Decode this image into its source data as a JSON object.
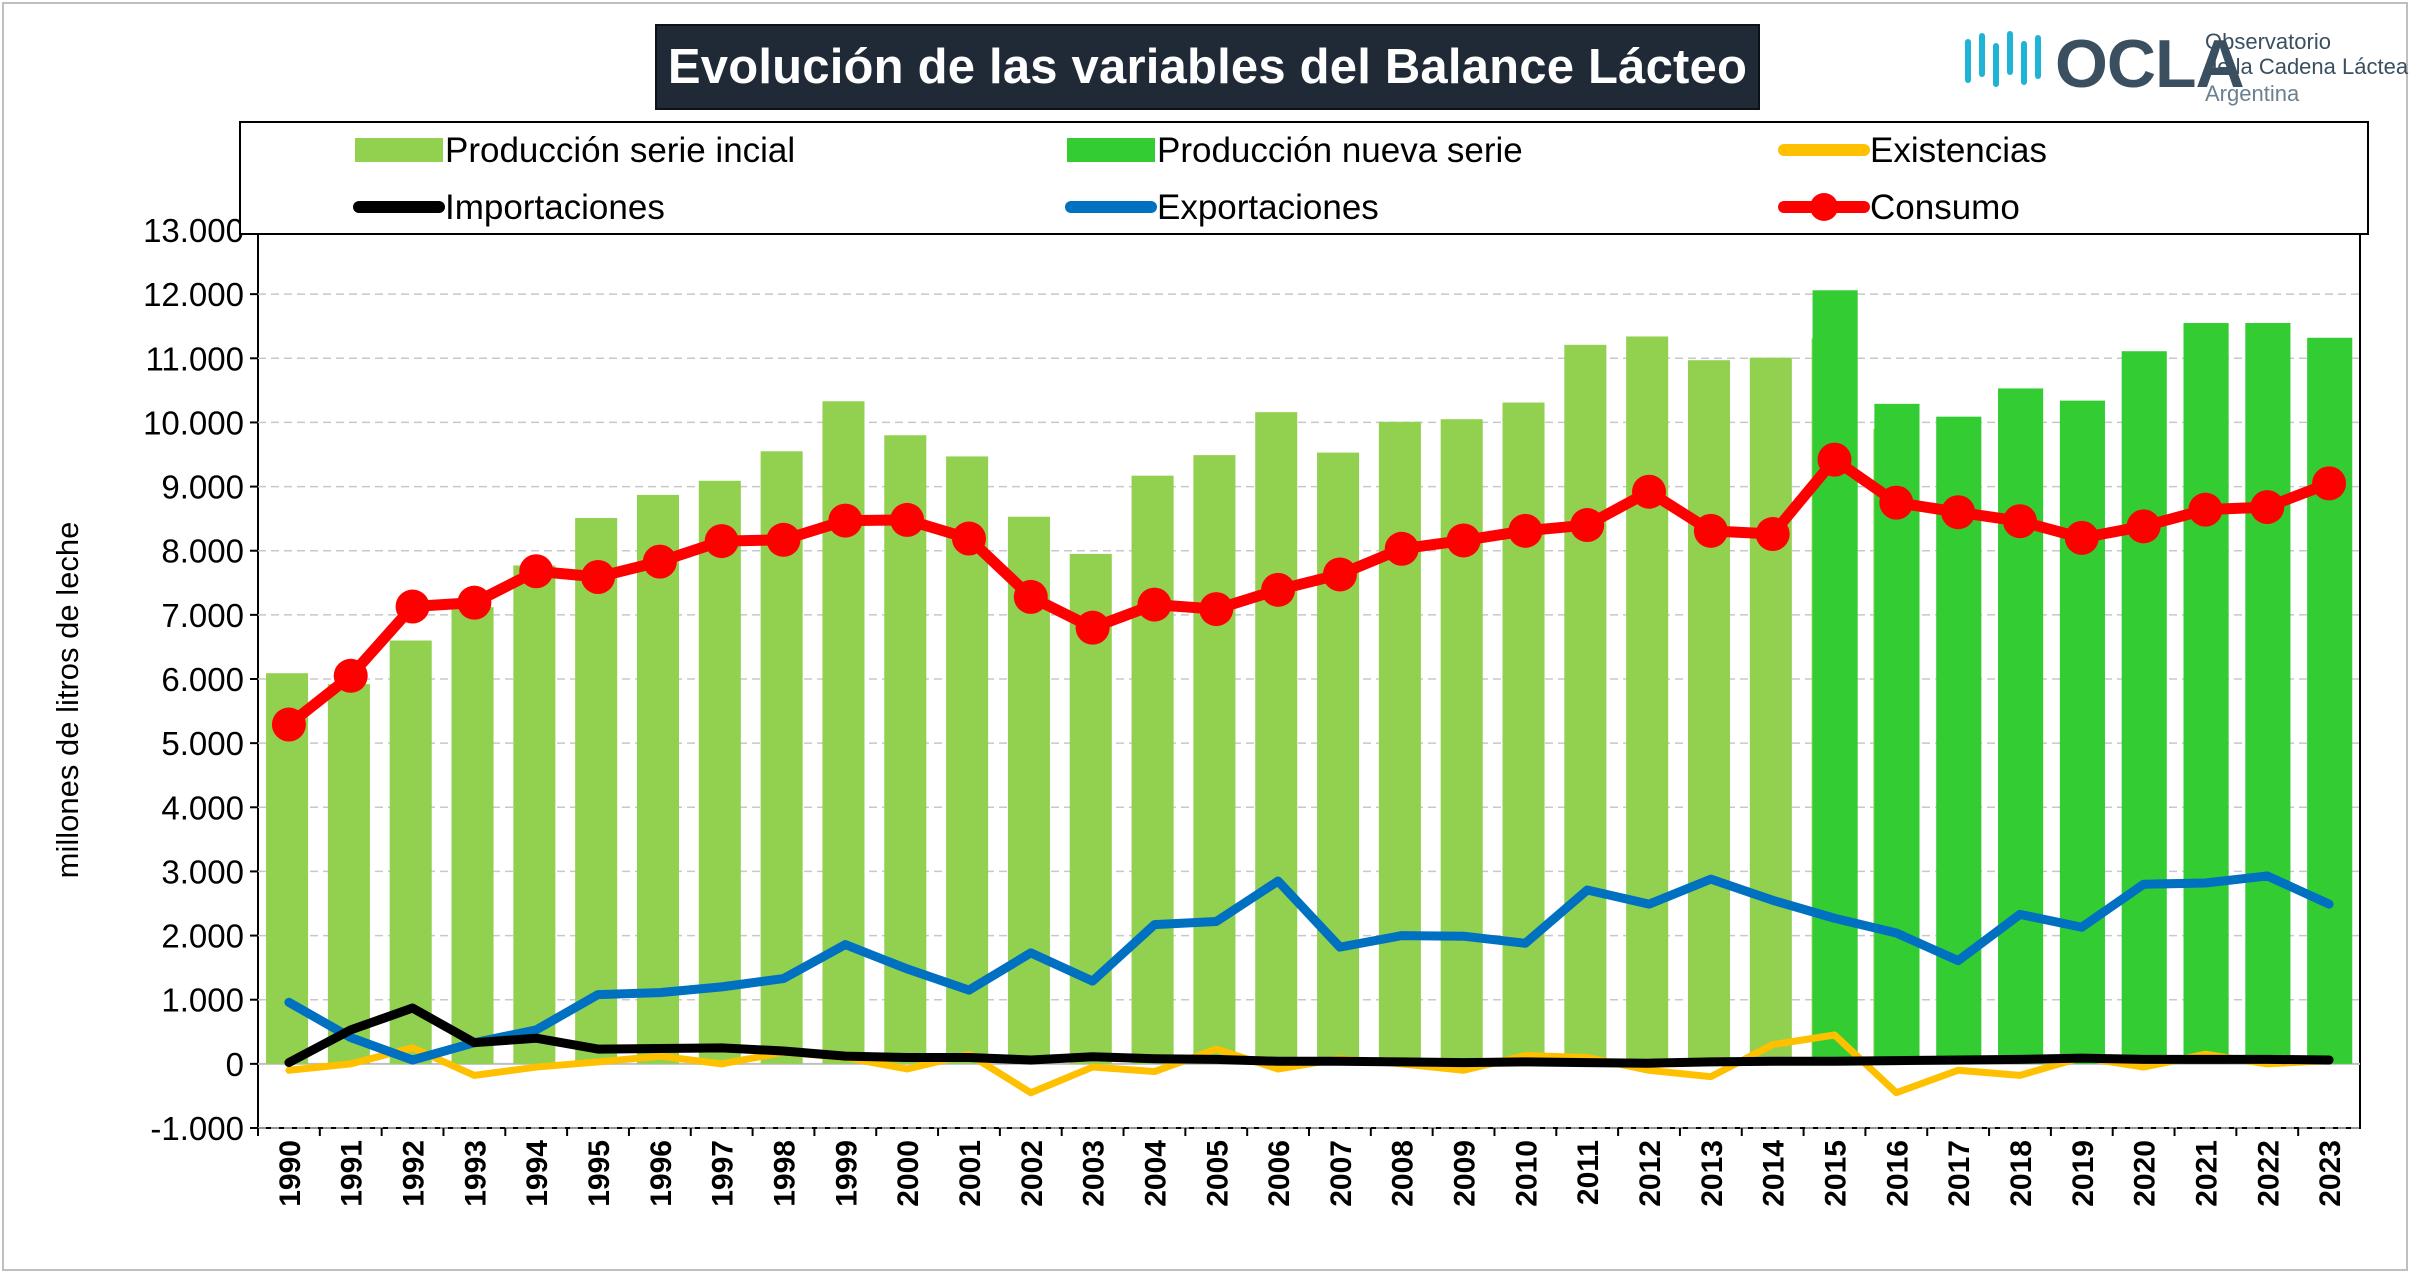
{
  "header": {
    "title": "Evolución de las variables del Balance Lácteo",
    "logo": {
      "brand": "OCLA",
      "line1": "Observatorio",
      "line2": "de la Cadena Láctea",
      "line3": "Argentina",
      "icon": "wave-bars-icon"
    }
  },
  "colors": {
    "produccion_inicial": "#92d050",
    "produccion_nueva": "#33cc33",
    "existencias": "#ffc000",
    "importaciones": "#000000",
    "exportaciones": "#0070c0",
    "consumo": "#ff0000"
  },
  "chart_data": {
    "type": "bar",
    "title": "Evolución de las variables del Balance Lácteo",
    "xlabel": "",
    "ylabel": "millones de litros de leche",
    "ylim": [
      -1000,
      13000
    ],
    "yticks": [
      "-1.000",
      "0",
      "1.000",
      "2.000",
      "3.000",
      "4.000",
      "5.000",
      "6.000",
      "7.000",
      "8.000",
      "9.000",
      "10.000",
      "11.000",
      "12.000",
      "13.000"
    ],
    "grid": true,
    "legend_position": "top",
    "categories": [
      "1990",
      "1991",
      "1992",
      "1993",
      "1994",
      "1995",
      "1996",
      "1997",
      "1998",
      "1999",
      "2000",
      "2001",
      "2002",
      "2003",
      "2004",
      "2005",
      "2006",
      "2007",
      "2008",
      "2009",
      "2010",
      "2011",
      "2012",
      "2013",
      "2014",
      "2015",
      "2016",
      "2017",
      "2018",
      "2019",
      "2020",
      "2021",
      "2022",
      "2023"
    ],
    "series": [
      {
        "name": "Producción serie incial",
        "kind": "bar",
        "color_key": "produccion_inicial",
        "values": [
          6090,
          5920,
          6600,
          7120,
          7770,
          8510,
          8870,
          9090,
          9550,
          10330,
          9800,
          9470,
          8530,
          7950,
          9170,
          9490,
          10160,
          9530,
          10010,
          10050,
          10310,
          11210,
          11340,
          10970,
          11010,
          11310,
          9900,
          null,
          null,
          null,
          null,
          null,
          null,
          null
        ]
      },
      {
        "name": "Producción nueva serie",
        "kind": "bar",
        "color_key": "produccion_nueva",
        "values": [
          null,
          null,
          null,
          null,
          null,
          null,
          null,
          null,
          null,
          null,
          null,
          null,
          null,
          null,
          null,
          null,
          null,
          null,
          null,
          null,
          null,
          null,
          null,
          null,
          null,
          12060,
          10290,
          10090,
          10530,
          10340,
          11110,
          11550,
          11550,
          11320
        ]
      },
      {
        "name": "Existencias",
        "kind": "line",
        "color_key": "existencias",
        "values": [
          -100,
          0,
          250,
          -180,
          -50,
          30,
          120,
          0,
          180,
          100,
          -80,
          150,
          -450,
          -50,
          -120,
          230,
          -80,
          80,
          0,
          -100,
          130,
          100,
          -100,
          -200,
          300,
          450,
          -450,
          -100,
          -180,
          100,
          -50,
          150,
          0,
          50
        ]
      },
      {
        "name": "Importaciones",
        "kind": "line",
        "color_key": "importaciones",
        "values": [
          20,
          530,
          870,
          330,
          400,
          230,
          240,
          250,
          200,
          120,
          100,
          100,
          60,
          110,
          80,
          70,
          40,
          40,
          30,
          20,
          30,
          20,
          10,
          30,
          40,
          40,
          50,
          60,
          70,
          90,
          70,
          70,
          70,
          60
        ]
      },
      {
        "name": "Exportaciones",
        "kind": "line",
        "color_key": "exportaciones",
        "values": [
          960,
          410,
          60,
          330,
          530,
          1080,
          1110,
          1200,
          1330,
          1860,
          1480,
          1150,
          1730,
          1290,
          2170,
          2220,
          2850,
          1820,
          2000,
          1990,
          1880,
          2710,
          2490,
          2880,
          2550,
          2270,
          2040,
          1610,
          2330,
          2130,
          2800,
          2820,
          2930,
          2490
        ]
      },
      {
        "name": "Consumo",
        "kind": "line-marker",
        "color_key": "consumo",
        "values": [
          5290,
          6050,
          7130,
          7190,
          7680,
          7590,
          7830,
          8150,
          8170,
          8470,
          8480,
          8190,
          7280,
          6800,
          7160,
          7090,
          7390,
          7630,
          8030,
          8160,
          8310,
          8400,
          8920,
          8310,
          8260,
          9420,
          8750,
          8600,
          8460,
          8200,
          8380,
          8640,
          8680,
          9050
        ]
      }
    ]
  }
}
